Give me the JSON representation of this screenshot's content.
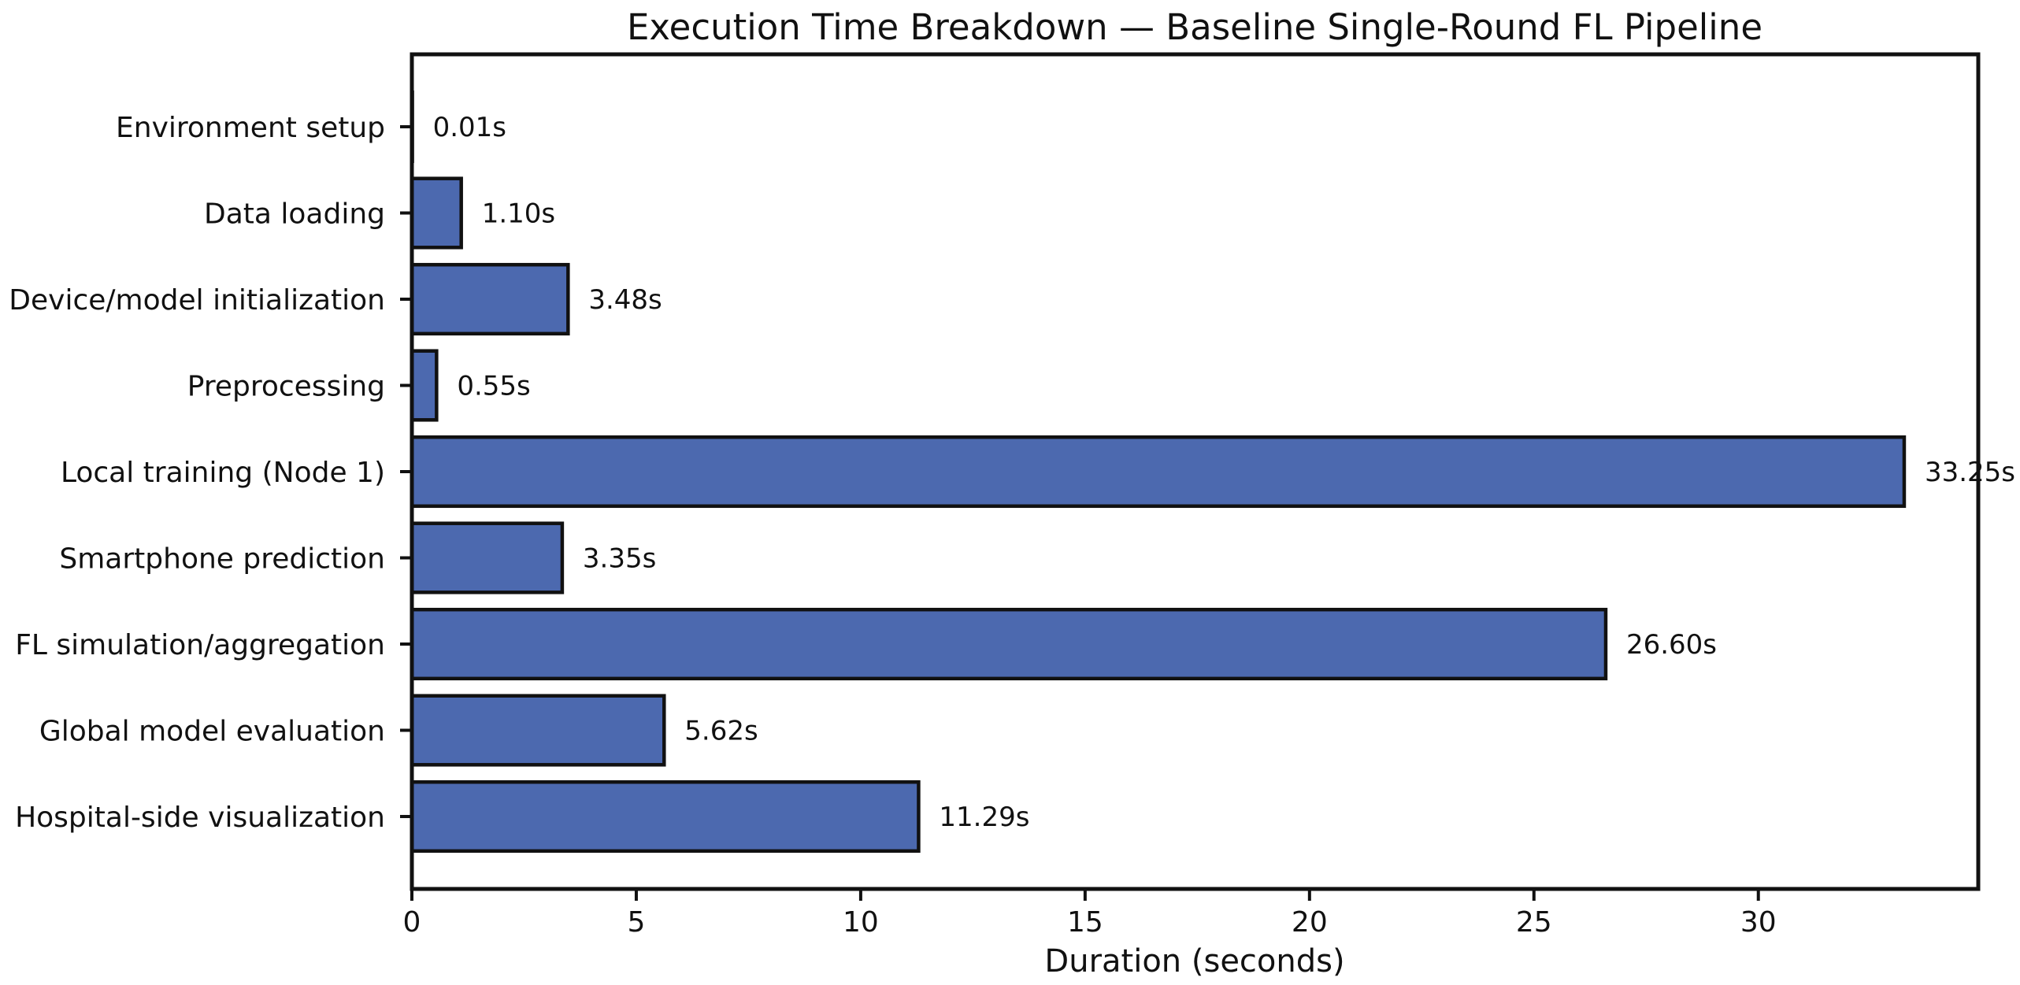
{
  "chart_data": {
    "type": "bar",
    "orientation": "horizontal",
    "title": "Execution Time Breakdown — Baseline Single-Round FL Pipeline",
    "xlabel": "Duration (seconds)",
    "ylabel": "",
    "categories": [
      "Environment setup",
      "Data loading",
      "Device/model initialization",
      "Preprocessing",
      "Local training (Node 1)",
      "Smartphone prediction",
      "FL simulation/aggregation",
      "Global model evaluation",
      "Hospital-side visualization"
    ],
    "values": [
      0.01,
      1.1,
      3.48,
      0.55,
      33.25,
      3.35,
      26.6,
      5.62,
      11.29
    ],
    "value_labels": [
      "0.01s",
      "1.10s",
      "3.48s",
      "0.55s",
      "33.25s",
      "3.35s",
      "26.60s",
      "5.62s",
      "11.29s"
    ],
    "xticks": [
      0,
      5,
      10,
      15,
      20,
      25,
      30
    ],
    "xlim": [
      0,
      34.9
    ],
    "grid": false,
    "legend": false,
    "bar_color": "#4c69af",
    "bar_edge_color": "#111111",
    "axis_color": "#111111",
    "text_color": "#111111",
    "background_color": "#ffffff"
  }
}
